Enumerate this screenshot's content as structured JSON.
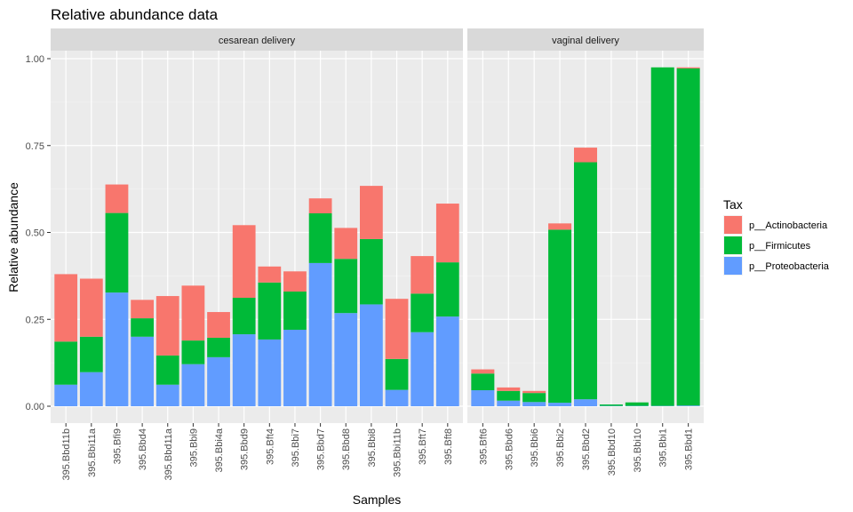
{
  "chart_data": {
    "type": "bar",
    "stacked": true,
    "title": "Relative abundance data",
    "xlabel": "Samples",
    "ylabel": "Relative abundance",
    "ylim": [
      0,
      1.0
    ],
    "y_ticks": [
      "0.00",
      "0.25",
      "0.50",
      "0.75",
      "1.00"
    ],
    "grid": true,
    "legend": {
      "title": "Tax",
      "position": "right",
      "entries": [
        {
          "name": "p__Actinobacteria",
          "color": "#F8766D"
        },
        {
          "name": "p__Firmicutes",
          "color": "#00BA38"
        },
        {
          "name": "p__Proteobacteria",
          "color": "#619CFF"
        }
      ]
    },
    "facets": [
      {
        "label": "cesarean delivery",
        "categories": [
          "395.Bbd11b",
          "395.Bbi11a",
          "395.Bfi9",
          "395.Bbd4",
          "395.Bbd11a",
          "395.Bbi9",
          "395.Bbi4a",
          "395.Bbd9",
          "395.Bft4",
          "395.Bbi7",
          "395.Bbd7",
          "395.Bbd8",
          "395.Bbi8",
          "395.Bbi11b",
          "395.Bft7",
          "395.Bft8"
        ],
        "series": [
          {
            "name": "p__Proteobacteria",
            "values": [
              0.062,
              0.098,
              0.327,
              0.2,
              0.062,
              0.121,
              0.141,
              0.207,
              0.192,
              0.22,
              0.412,
              0.268,
              0.293,
              0.047,
              0.213,
              0.258
            ]
          },
          {
            "name": "p__Firmicutes",
            "values": [
              0.124,
              0.102,
              0.229,
              0.053,
              0.084,
              0.068,
              0.056,
              0.105,
              0.164,
              0.11,
              0.143,
              0.156,
              0.188,
              0.089,
              0.111,
              0.156
            ]
          },
          {
            "name": "p__Actinobacteria",
            "values": [
              0.194,
              0.167,
              0.082,
              0.053,
              0.171,
              0.158,
              0.074,
              0.209,
              0.046,
              0.058,
              0.043,
              0.089,
              0.153,
              0.173,
              0.108,
              0.169
            ]
          }
        ]
      },
      {
        "label": "vaginal delivery",
        "categories": [
          "395.Bft6",
          "395.Bbd6",
          "395.Bbi6",
          "395.Bbi2",
          "395.Bbd2",
          "395.Bbd10",
          "395.Bbi10",
          "395.Bbi1",
          "395.Bbd1"
        ],
        "series": [
          {
            "name": "p__Proteobacteria",
            "values": [
              0.046,
              0.016,
              0.012,
              0.01,
              0.02,
              0.001,
              0.001,
              0.001,
              0.002
            ]
          },
          {
            "name": "p__Firmicutes",
            "values": [
              0.048,
              0.028,
              0.026,
              0.498,
              0.682,
              0.004,
              0.01,
              0.974,
              0.97
            ]
          },
          {
            "name": "p__Actinobacteria",
            "values": [
              0.012,
              0.01,
              0.006,
              0.018,
              0.042,
              0.0,
              0.0,
              0.0,
              0.003
            ]
          }
        ]
      }
    ]
  }
}
